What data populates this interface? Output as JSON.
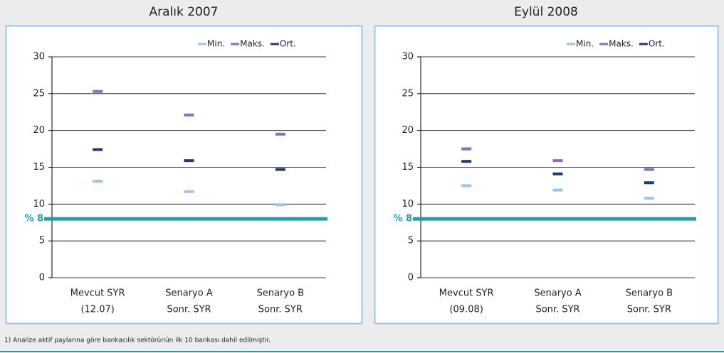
{
  "chart_data": [
    {
      "type": "marker",
      "title": "Aralık 2007",
      "categories": [
        [
          "Mevcut SYR",
          "(12.07)"
        ],
        [
          "Senaryo A",
          "Sonr. SYR"
        ],
        [
          "Senaryo B",
          "Sonr. SYR"
        ]
      ],
      "series": [
        {
          "name": "Min.",
          "color": "#9dc3e6",
          "values": [
            13.1,
            11.7,
            9.9
          ]
        },
        {
          "name": "Maks.",
          "color": "#8e6bb5",
          "values": [
            25.3,
            22.1,
            19.5
          ]
        },
        {
          "name": "Ort.",
          "color": "#1f3a6e",
          "values": [
            17.4,
            15.9,
            14.7
          ]
        }
      ],
      "ylim": [
        0,
        30
      ],
      "yticks": [
        0,
        5,
        10,
        15,
        20,
        25,
        30
      ],
      "grid": true,
      "threshold": {
        "value": 8,
        "label": "% 8",
        "color": "#2a9aa3"
      }
    },
    {
      "type": "marker",
      "title": "Eylül 2008",
      "categories": [
        [
          "Mevcut SYR",
          "(09.08)"
        ],
        [
          "Senaryo A",
          "Sonr. SYR"
        ],
        [
          "Senaryo B",
          "Sonr. SYR"
        ]
      ],
      "series": [
        {
          "name": "Min.",
          "color": "#9dc3e6",
          "values": [
            12.5,
            11.9,
            10.8
          ]
        },
        {
          "name": "Maks.",
          "color": "#8e6bb5",
          "values": [
            17.5,
            15.9,
            14.7
          ]
        },
        {
          "name": "Ort.",
          "color": "#1f3a6e",
          "values": [
            15.8,
            14.1,
            12.9
          ]
        }
      ],
      "ylim": [
        0,
        30
      ],
      "yticks": [
        0,
        5,
        10,
        15,
        20,
        25,
        30
      ],
      "grid": true,
      "threshold": {
        "value": 8,
        "label": "% 8",
        "color": "#2a9aa3"
      }
    }
  ],
  "footnote": "1) Analize aktif paylarına göre bankacılık sektörünün ilk 10 bankası dahil edilmiştir."
}
